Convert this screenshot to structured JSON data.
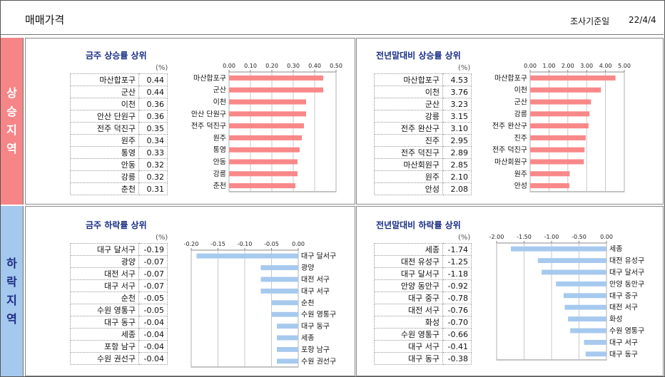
{
  "header": {
    "title": "매매가격",
    "date_label": "조사기준일",
    "date": "22/4/4"
  },
  "sections": {
    "rise": "상승지역",
    "fall": "하락지역"
  },
  "panels": [
    {
      "title": "금주 상승률 상위",
      "unit": "(%)"
    },
    {
      "title": "전년말대비 상승률 상위",
      "unit": "(%)"
    },
    {
      "title": "금주 하락률 상위",
      "unit": "(%)"
    },
    {
      "title": "전년말대비 하락률 상위",
      "unit": "(%)"
    }
  ],
  "colors": {
    "rise_bar": "#f98889",
    "fall_bar": "#a6c9ee",
    "title": "#1a2f86"
  },
  "chart_data": [
    {
      "type": "bar",
      "orientation": "horizontal",
      "title": "금주 상승률 상위",
      "categories": [
        "마산합포구",
        "군산",
        "이천",
        "안산 단원구",
        "전주 덕진구",
        "원주",
        "통영",
        "안동",
        "강릉",
        "춘천"
      ],
      "values": [
        0.44,
        0.44,
        0.36,
        0.36,
        0.35,
        0.34,
        0.33,
        0.32,
        0.32,
        0.31
      ],
      "xlim": [
        0,
        0.5
      ],
      "ticks": [
        "0.00",
        "0.10",
        "0.20",
        "0.30",
        "0.40",
        "0.50"
      ],
      "tick_values": [
        0,
        0.1,
        0.2,
        0.3,
        0.4,
        0.5
      ],
      "axis_position": "top",
      "grid": true
    },
    {
      "type": "bar",
      "orientation": "horizontal",
      "title": "전년말대비 상승률 상위",
      "categories": [
        "마산합포구",
        "이천",
        "군산",
        "강릉",
        "전주 완산구",
        "진주",
        "전주 덕진구",
        "마산회원구",
        "원주",
        "안성"
      ],
      "values": [
        4.53,
        3.76,
        3.23,
        3.15,
        3.1,
        2.95,
        2.89,
        2.85,
        2.1,
        2.08
      ],
      "xlim": [
        0,
        5
      ],
      "ticks": [
        "0.00",
        "1.00",
        "2.00",
        "3.00",
        "4.00",
        "5.00"
      ],
      "tick_values": [
        0,
        1,
        2,
        3,
        4,
        5
      ],
      "axis_position": "top",
      "grid": true
    },
    {
      "type": "bar",
      "orientation": "horizontal",
      "title": "금주 하락률 상위",
      "categories": [
        "대구 달서구",
        "광양",
        "대전 서구",
        "대구 서구",
        "순천",
        "수원 영통구",
        "대구 동구",
        "세종",
        "포항 남구",
        "수원 권선구"
      ],
      "values": [
        -0.19,
        -0.07,
        -0.07,
        -0.07,
        -0.05,
        -0.05,
        -0.04,
        -0.04,
        -0.04,
        -0.04
      ],
      "xlim": [
        -0.2,
        0
      ],
      "ticks": [
        "-0.20",
        "-0.15",
        "-0.10",
        "-0.05",
        "0.00"
      ],
      "tick_values": [
        -0.2,
        -0.15,
        -0.1,
        -0.05,
        0
      ],
      "axis_position": "top",
      "grid": true
    },
    {
      "type": "bar",
      "orientation": "horizontal",
      "title": "전년말대비 하락률 상위",
      "categories": [
        "세종",
        "대전 유성구",
        "대구 달서구",
        "안양 동안구",
        "대구 중구",
        "대전 서구",
        "화성",
        "수원 영통구",
        "대구 서구",
        "대구 동구"
      ],
      "values": [
        -1.74,
        -1.25,
        -1.18,
        -0.92,
        -0.78,
        -0.76,
        -0.7,
        -0.66,
        -0.41,
        -0.38
      ],
      "xlim": [
        -2,
        0
      ],
      "ticks": [
        "-2.00",
        "-1.50",
        "-1.00",
        "-0.50",
        "0.00"
      ],
      "tick_values": [
        -2,
        -1.5,
        -1,
        -0.5,
        0
      ],
      "axis_position": "top",
      "grid": true
    }
  ]
}
